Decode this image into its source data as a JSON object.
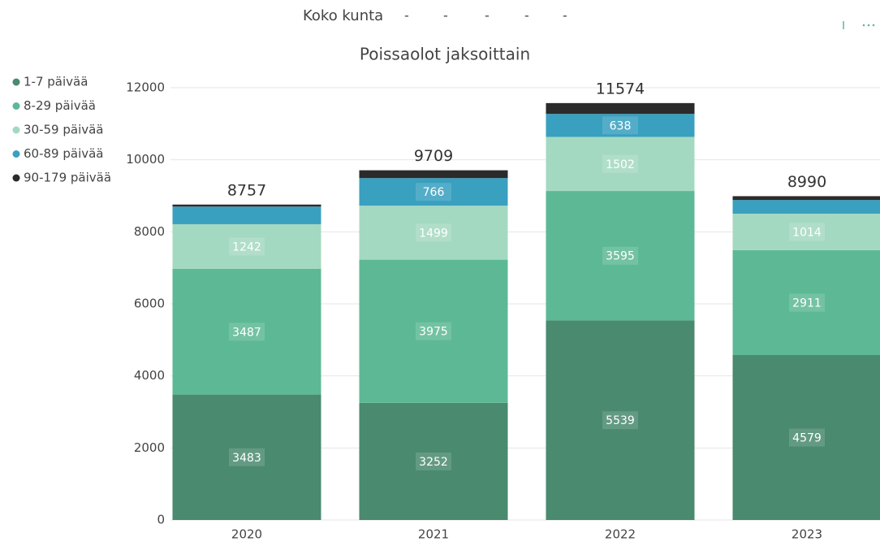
{
  "filter_label": "Koko kunta",
  "filter_values": [
    "-",
    "-",
    "-",
    "-",
    "-"
  ],
  "chart_data": {
    "type": "bar",
    "stacked": true,
    "title": "Poissaolot jaksoittain",
    "categories": [
      "2020",
      "2021",
      "2022",
      "2023"
    ],
    "series": [
      {
        "name": "1-7 päivää",
        "color": "#4a8a6f",
        "values": [
          3483,
          3252,
          5539,
          4579
        ],
        "value_labels": [
          "3483",
          "3252",
          "5539",
          "4579"
        ]
      },
      {
        "name": "8-29 päivää",
        "color": "#5db995",
        "values": [
          3487,
          3975,
          3595,
          2911
        ],
        "value_labels": [
          "3487",
          "3975",
          "3595",
          "2911"
        ]
      },
      {
        "name": "30-59 päivää",
        "color": "#a4d9c1",
        "values": [
          1242,
          1499,
          1502,
          1014
        ],
        "value_labels": [
          "1242",
          "1499",
          "1502",
          "1014"
        ]
      },
      {
        "name": "60-89 päivää",
        "color": "#39a0bf",
        "values": [
          490,
          766,
          638,
          380
        ],
        "value_labels": [
          null,
          "766",
          "638",
          null
        ]
      },
      {
        "name": "90-179 päivää",
        "color": "#2b2b2b",
        "values": [
          55,
          217,
          300,
          106
        ],
        "value_labels": [
          null,
          null,
          null,
          null
        ]
      }
    ],
    "totals": [
      8757,
      9709,
      11574,
      8990
    ],
    "ylim": [
      0,
      12000
    ],
    "yticks": [
      0,
      2000,
      4000,
      6000,
      8000,
      10000,
      12000
    ],
    "grid": true,
    "legend": "left"
  }
}
